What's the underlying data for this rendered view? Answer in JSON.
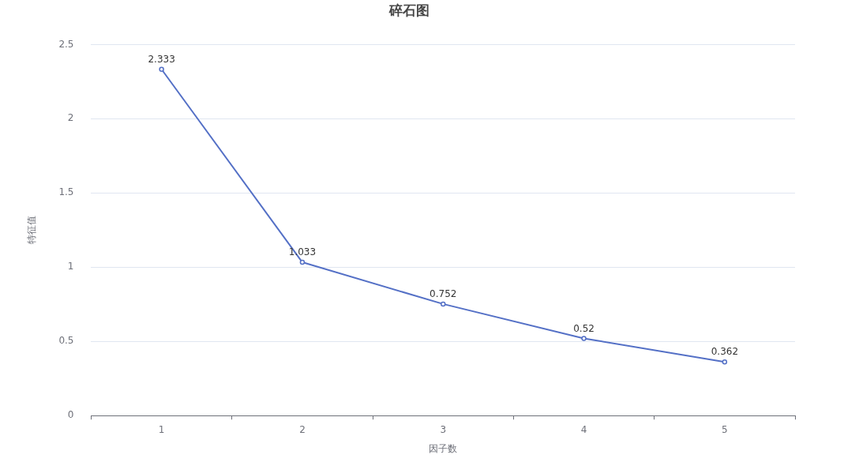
{
  "chart_data": {
    "type": "line",
    "title": "碎石图",
    "xlabel": "因子数",
    "ylabel": "特征值",
    "categories": [
      "1",
      "2",
      "3",
      "4",
      "5"
    ],
    "series": [
      {
        "color": "#5470c6",
        "values": [
          2.333,
          1.033,
          0.752,
          0.52,
          0.362
        ]
      }
    ],
    "ylim": [
      0,
      2.5
    ],
    "yticks": [
      0,
      0.5,
      1,
      1.5,
      2,
      2.5
    ],
    "grid": "y",
    "data_labels": true,
    "marker": "circle",
    "line_style": "solid"
  }
}
